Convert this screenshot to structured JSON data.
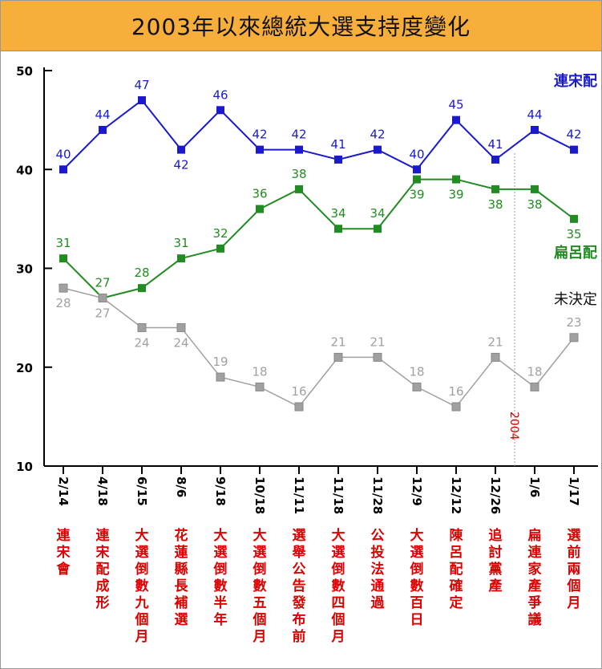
{
  "chart_data": {
    "type": "line",
    "title": "2003年以來總統大選支持度變化",
    "ylim": [
      10,
      50
    ],
    "yticks": [
      10,
      20,
      30,
      40,
      50
    ],
    "grid": false,
    "categories": [
      "2/14",
      "4/18",
      "6/15",
      "8/6",
      "9/18",
      "10/18",
      "11/11",
      "11/18",
      "11/28",
      "12/9",
      "12/12",
      "12/26",
      "1/6",
      "1/17"
    ],
    "events": [
      "連宋會",
      "連宋配成形",
      "大選倒數九個月",
      "花蓮縣長補選",
      "大選倒數半年",
      "大選倒數五個月",
      "選舉公告發布前",
      "大選倒數四個月",
      "公投法通過",
      "大選倒數百日",
      "陳呂配確定",
      "追討黨產",
      "扁連家產爭議",
      "選前兩個月"
    ],
    "divider": {
      "after_index": 11,
      "label": "2004"
    },
    "series": [
      {
        "name": "連宋配",
        "color": "#1a1acc",
        "values": [
          40,
          44,
          47,
          42,
          46,
          42,
          42,
          41,
          42,
          40,
          45,
          41,
          44,
          42
        ]
      },
      {
        "name": "扁呂配",
        "color": "#228b22",
        "values": [
          31,
          27,
          28,
          31,
          32,
          36,
          38,
          34,
          34,
          39,
          39,
          38,
          38,
          35
        ]
      },
      {
        "name": "未決定",
        "color": "#a0a0a0",
        "label_color": "#111111",
        "values": [
          28,
          27,
          24,
          24,
          19,
          18,
          16,
          21,
          21,
          18,
          16,
          21,
          18,
          23
        ]
      }
    ]
  }
}
